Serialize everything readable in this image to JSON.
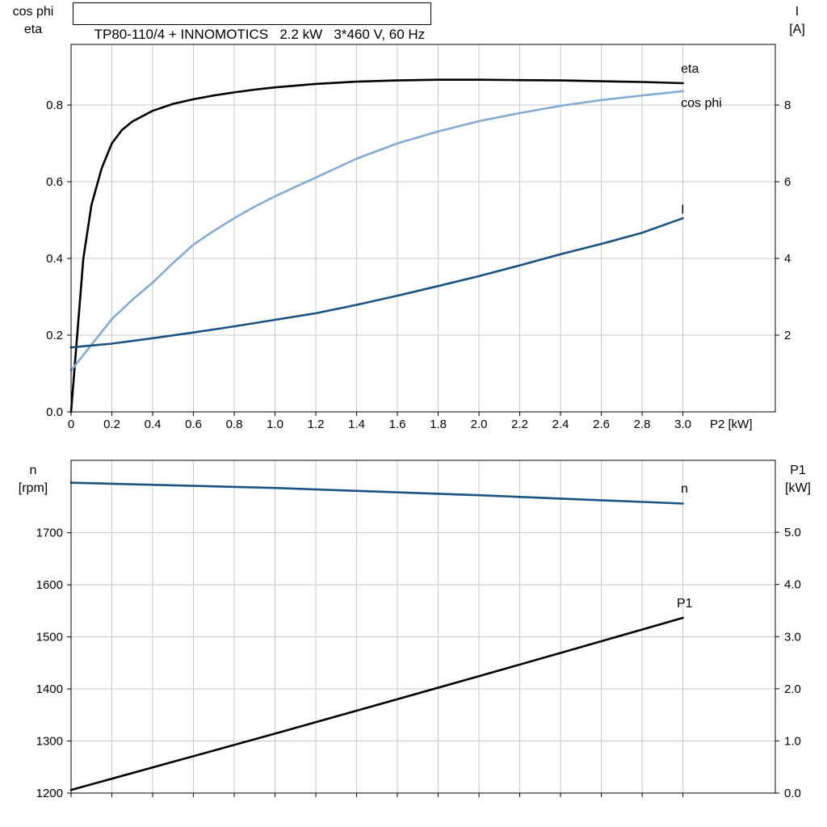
{
  "colors": {
    "eta": "#000000",
    "cos_phi": "#84abd1",
    "current": "#1a5280",
    "p1": "#000000",
    "grid": "#c8c8c8",
    "axis": "#000000",
    "background": "#ffffff"
  },
  "chart_data": [
    {
      "type": "line",
      "title": "TP80-110/4 + INNOMOTICS   2.2 kW   3*460 V, 60 Hz",
      "xlim": [
        0,
        3.453
      ],
      "ylim_left": [
        0,
        0.958
      ],
      "ylim_right": [
        0,
        9.58
      ],
      "grid": true,
      "x": {
        "label": "P2 [kW]",
        "ticks": [
          0,
          0.2,
          0.4,
          0.6,
          0.8,
          1,
          1.2,
          1.4,
          1.6,
          1.8,
          2,
          2.2,
          2.4,
          2.6,
          2.8,
          3
        ],
        "labels": [
          "0",
          "0.2",
          "0.4",
          "0.6",
          "0.8",
          "1.0",
          "1.2",
          "1.4",
          "1.6",
          "1.8",
          "2.0",
          "2.2",
          "2.4",
          "2.6",
          "2.8",
          "3.0"
        ]
      },
      "y_left": {
        "title_lines": [
          "cos phi",
          "eta"
        ],
        "ticks": [
          0,
          0.2,
          0.4,
          0.6,
          0.8
        ],
        "labels": [
          "0.0",
          "0.2",
          "0.4",
          "0.6",
          "0.8"
        ]
      },
      "y_right": {
        "title_lines": [
          "I",
          "[A]"
        ],
        "ticks": [
          2,
          4,
          6,
          8
        ],
        "labels": [
          "2",
          "4",
          "6",
          "8"
        ]
      },
      "series": [
        {
          "id": "eta",
          "label": "eta",
          "axis": "left",
          "color": "eta",
          "x": [
            0,
            0.015,
            0.03,
            0.06,
            0.1,
            0.15,
            0.2,
            0.25,
            0.3,
            0.4,
            0.5,
            0.6,
            0.7,
            0.8,
            0.9,
            1.0,
            1.2,
            1.4,
            1.6,
            1.8,
            2.0,
            2.2,
            2.4,
            2.6,
            2.8,
            3.0
          ],
          "y": [
            0,
            0.1,
            0.2,
            0.4,
            0.54,
            0.635,
            0.7,
            0.735,
            0.757,
            0.785,
            0.803,
            0.815,
            0.825,
            0.833,
            0.84,
            0.846,
            0.855,
            0.861,
            0.864,
            0.866,
            0.866,
            0.865,
            0.864,
            0.862,
            0.86,
            0.857
          ],
          "label_at": [
            2.99,
            0.884
          ]
        },
        {
          "id": "cos-phi",
          "label": "cos phi",
          "axis": "left",
          "color": "cos_phi",
          "x": [
            0,
            0.1,
            0.2,
            0.3,
            0.4,
            0.5,
            0.6,
            0.7,
            0.8,
            0.9,
            1.0,
            1.2,
            1.4,
            1.6,
            1.8,
            2.0,
            2.2,
            2.4,
            2.6,
            2.8,
            3.0
          ],
          "y": [
            0.108,
            0.175,
            0.242,
            0.292,
            0.337,
            0.388,
            0.436,
            0.472,
            0.505,
            0.535,
            0.562,
            0.611,
            0.66,
            0.7,
            0.731,
            0.758,
            0.779,
            0.798,
            0.813,
            0.825,
            0.836
          ],
          "label_at": [
            2.99,
            0.795
          ]
        },
        {
          "id": "current",
          "label": "I",
          "axis": "right",
          "color": "current",
          "x": [
            0,
            0.2,
            0.4,
            0.6,
            0.8,
            1.0,
            1.2,
            1.4,
            1.6,
            1.8,
            2.0,
            2.2,
            2.4,
            2.6,
            2.8,
            3.0
          ],
          "y": [
            1.68,
            1.78,
            1.92,
            2.07,
            2.23,
            2.4,
            2.57,
            2.79,
            3.03,
            3.28,
            3.54,
            3.82,
            4.11,
            4.38,
            4.67,
            5.05
          ],
          "label_at": [
            2.99,
            5.17
          ]
        }
      ]
    },
    {
      "type": "line",
      "title": "",
      "xlim": [
        0,
        3.453
      ],
      "ylim_left": [
        1200,
        1839
      ],
      "ylim_right": [
        0,
        6.38
      ],
      "grid": true,
      "x": {
        "label": "",
        "ticks": [
          0,
          0.2,
          0.4,
          0.6,
          0.8,
          1,
          1.2,
          1.4,
          1.6,
          1.8,
          2,
          2.2,
          2.4,
          2.6,
          2.8,
          3
        ],
        "labels": []
      },
      "y_left": {
        "title_lines": [
          "n",
          "[rpm]"
        ],
        "ticks": [
          1200,
          1300,
          1400,
          1500,
          1600,
          1700
        ],
        "labels": [
          "1200",
          "1300",
          "1400",
          "1500",
          "1600",
          "1700"
        ]
      },
      "y_right": {
        "title_lines": [
          "P1",
          "[kW]"
        ],
        "ticks": [
          0,
          1,
          2,
          3,
          4,
          5
        ],
        "labels": [
          "0.0",
          "1.0",
          "2.0",
          "3.0",
          "4.0",
          "5.0"
        ]
      },
      "series": [
        {
          "id": "n",
          "label": "n",
          "axis": "left",
          "color": "current",
          "x": [
            0,
            0.5,
            1.0,
            1.5,
            2.0,
            2.5,
            3.0
          ],
          "y": [
            1796,
            1791,
            1786,
            1779,
            1772,
            1764,
            1756
          ],
          "label_at": [
            2.99,
            1777
          ]
        },
        {
          "id": "p1",
          "label": "P1",
          "axis": "right",
          "color": "p1",
          "x": [
            0,
            0.5,
            1.0,
            1.5,
            2.0,
            2.5,
            3.0
          ],
          "y": [
            0.06,
            0.6,
            1.14,
            1.69,
            2.24,
            2.8,
            3.36
          ],
          "label_at": [
            2.97,
            3.56
          ]
        }
      ]
    }
  ]
}
